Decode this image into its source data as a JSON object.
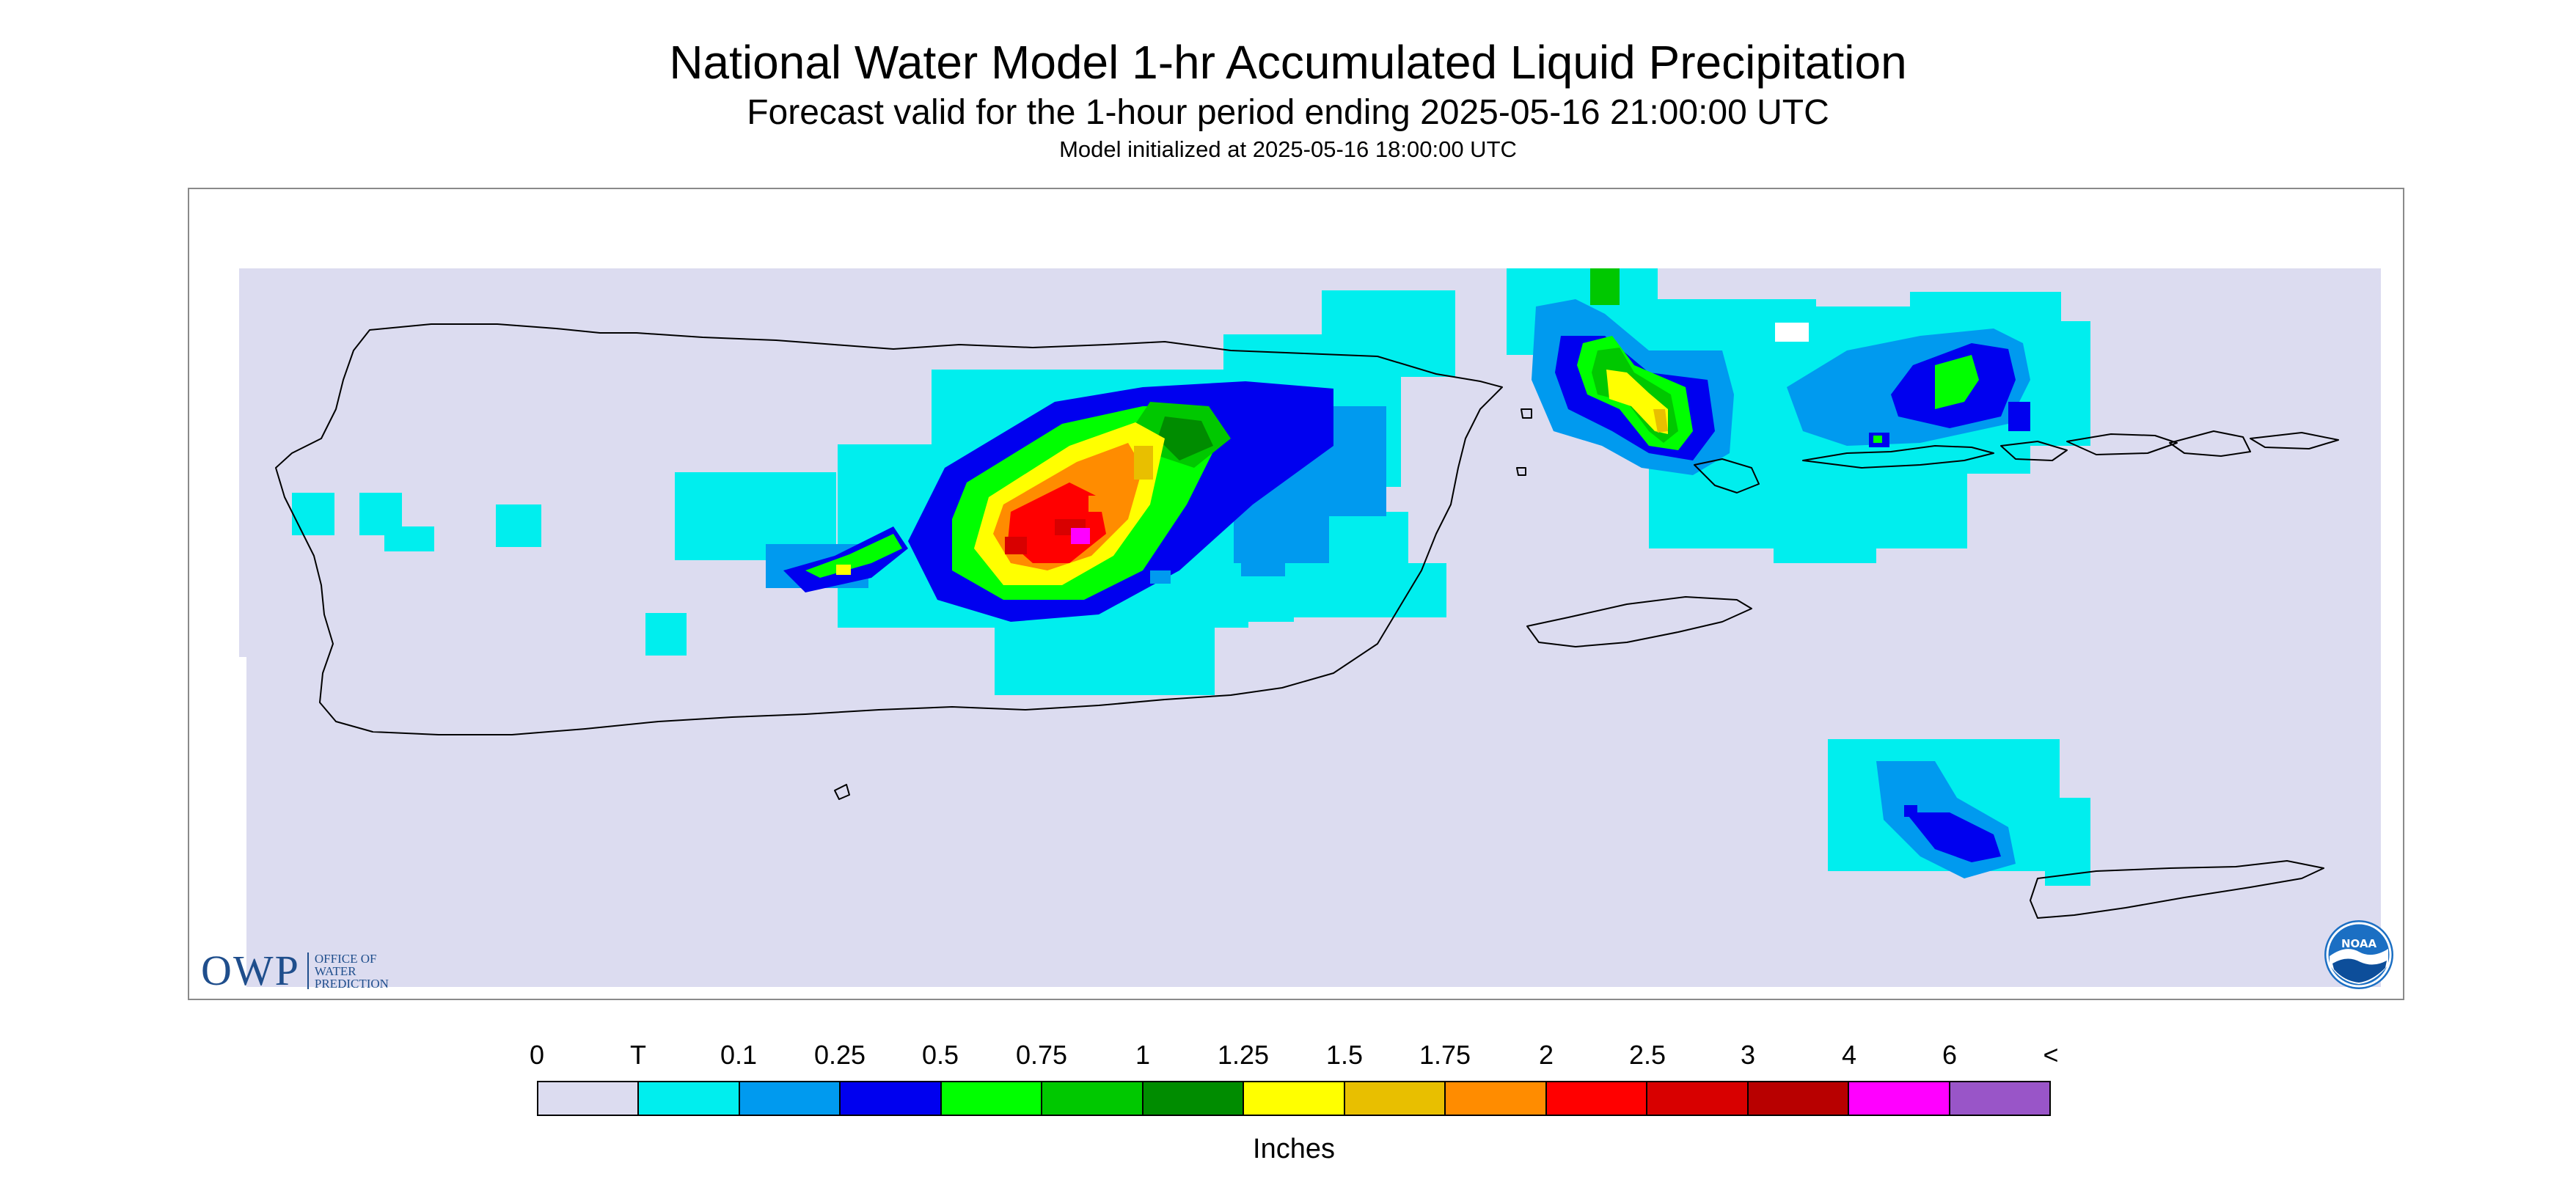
{
  "title": "National Water Model 1-hr Accumulated Liquid Precipitation",
  "subtitle": "Forecast valid for the 1-hour period ending 2025-05-16 21:00:00 UTC",
  "init_text": "Model initialized at 2025-05-16 18:00:00 UTC",
  "owp_logo": {
    "mark": "OWP",
    "lines": [
      "OFFICE OF",
      "WATER",
      "PREDICTION"
    ]
  },
  "noaa_logo": {
    "text": "NOAA",
    "icon": "noaa-emblem-icon"
  },
  "legend": {
    "unit": "Inches",
    "ticks": [
      "0",
      "T",
      "0.1",
      "0.25",
      "0.5",
      "0.75",
      "1",
      "1.25",
      "1.5",
      "1.75",
      "2",
      "2.5",
      "3",
      "4",
      "6",
      "<"
    ],
    "colors": [
      "#dcdcf0",
      "#00eeee",
      "#009aef",
      "#0000ef",
      "#00ff00",
      "#00c800",
      "#008c00",
      "#ffff00",
      "#e8bf00",
      "#ff8c00",
      "#ff0000",
      "#d80000",
      "#b80000",
      "#ff00ff",
      "#9955c8"
    ]
  },
  "colors": {
    "background": "#dcdcf0",
    "coastline": "#000000",
    "logo_blue": "#1f4e8c"
  }
}
